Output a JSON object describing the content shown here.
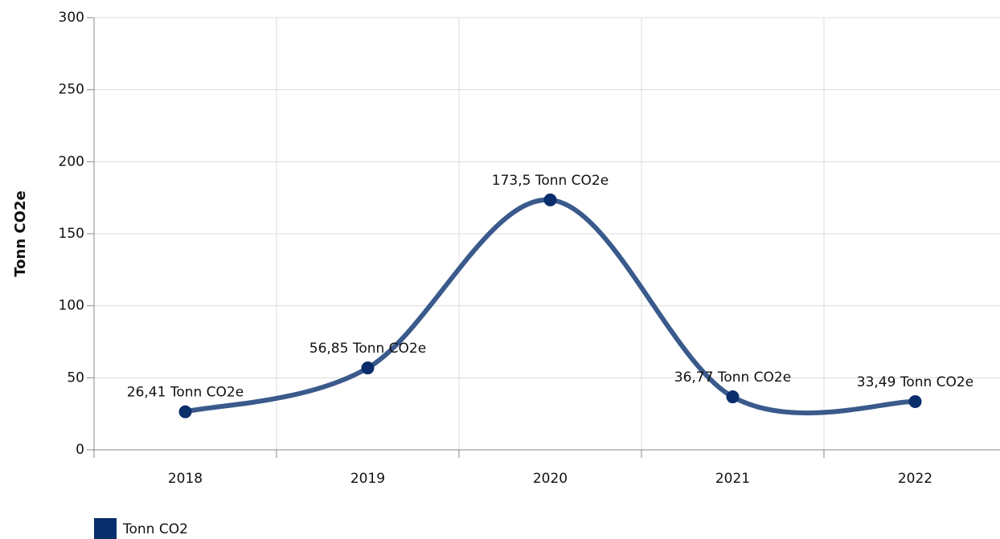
{
  "chart_data": {
    "type": "line",
    "smooth": true,
    "y_label": "Tonn CO2e",
    "categories": [
      "2018",
      "2019",
      "2020",
      "2021",
      "2022"
    ],
    "series": [
      {
        "name": "Tonn CO2",
        "color": "#3a5a8c",
        "marker_color": "#0a2d6b",
        "values": [
          26.41,
          56.85,
          173.5,
          36.77,
          33.49
        ],
        "value_labels": [
          "26,41 Tonn CO2e",
          "56,85 Tonn CO2e",
          "173,5 Tonn CO2e",
          "36,77 Tonn CO2e",
          "33,49 Tonn CO2e"
        ]
      }
    ],
    "ylim": [
      0,
      300
    ],
    "yticks": [
      0,
      50,
      100,
      150,
      200,
      250,
      300
    ],
    "grid": true,
    "legend": "bottom-left"
  }
}
